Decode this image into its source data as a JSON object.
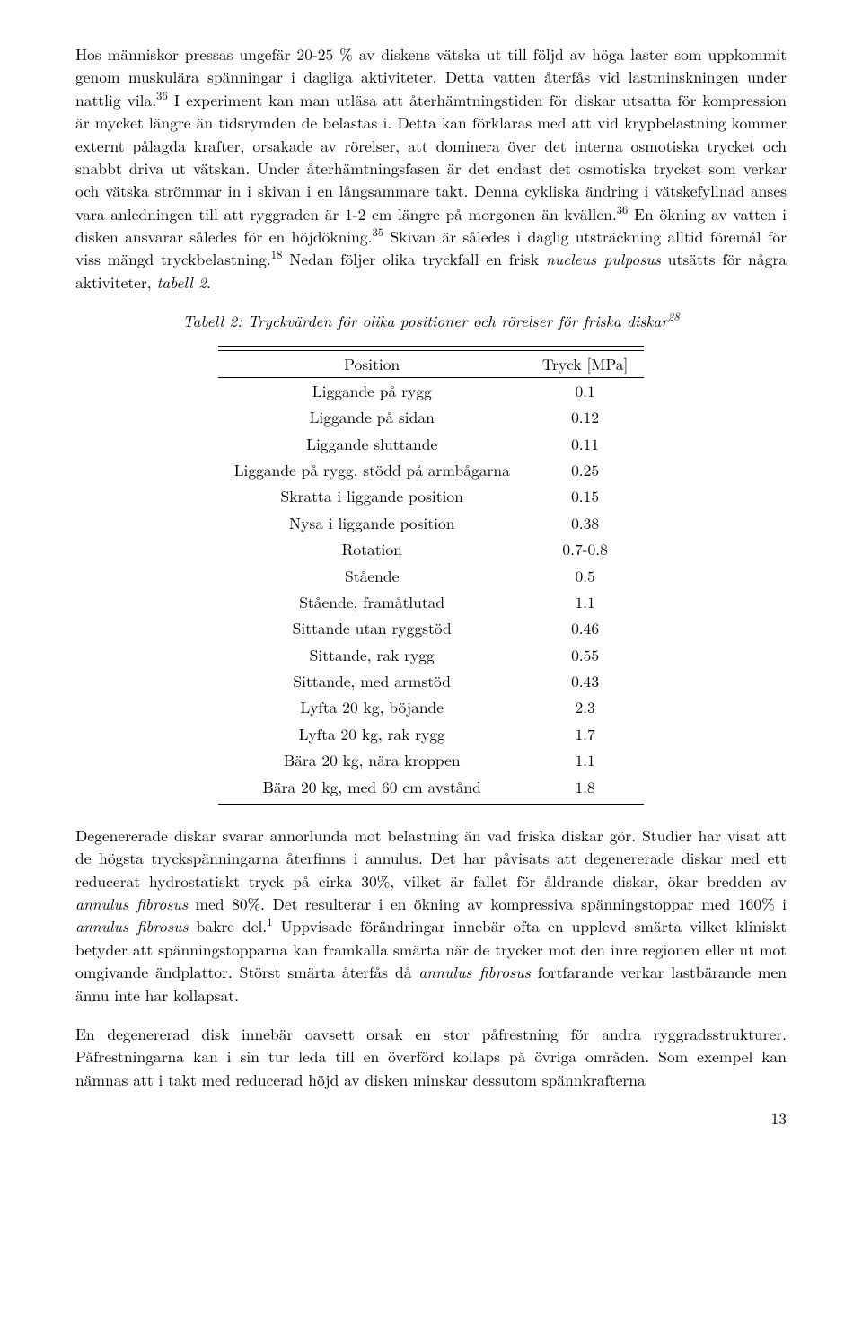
{
  "para1_html": "Hos människor pressas ungefär 20-25 % av diskens vätska ut till följd av höga laster som uppkommit genom muskulära spänningar i dagliga aktiviteter. Detta vatten återfås vid lastminskningen under nattlig vila.<sup>36</sup> I experiment kan man utläsa att återhämtningstiden för diskar utsatta för kompression är mycket längre än tidsrymden de belastas i. Detta kan förklaras med att vid krypbelastning kommer externt pålagda krafter, orsakade av rörelser, att dominera över det interna osmotiska trycket och snabbt driva ut vätskan. Under återhämtningsfasen är det endast det osmotiska trycket som verkar och vätska strömmar in i skivan i en långsammare takt. Denna cykliska ändring i vätskefyllnad anses vara anledningen till att ryggraden är 1-2 cm längre på morgonen än kvällen.<sup>36</sup> En ökning av vatten i disken ansvarar således för en höjdökning.<sup>35</sup> Skivan är således i daglig utsträckning alltid föremål för viss mängd tryckbelastning.<sup>18</sup> Nedan följer olika tryckfall en frisk <span class=\"italic\">nucleus pulposus</span> utsätts för några aktiviteter, <span class=\"italic\">tabell 2</span>.",
  "caption_html": "Tabell 2: Tryckvärden för olika positioner och rörelser för friska diskar<sup>28</sup>",
  "table": {
    "headers": [
      "Position",
      "Tryck [MPa]"
    ],
    "rows": [
      [
        "Liggande på rygg",
        "0.1"
      ],
      [
        "Liggande på sidan",
        "0.12"
      ],
      [
        "Liggande sluttande",
        "0.11"
      ],
      [
        "Liggande på rygg, stödd på armbågarna",
        "0.25"
      ],
      [
        "Skratta i liggande position",
        "0.15"
      ],
      [
        "Nysa i liggande position",
        "0.38"
      ],
      [
        "Rotation",
        "0.7-0.8"
      ],
      [
        "Stående",
        "0.5"
      ],
      [
        "Stående, framåtlutad",
        "1.1"
      ],
      [
        "Sittande utan ryggstöd",
        "0.46"
      ],
      [
        "Sittande, rak rygg",
        "0.55"
      ],
      [
        "Sittande, med armstöd",
        "0.43"
      ],
      [
        "Lyfta 20 kg, böjande",
        "2.3"
      ],
      [
        "Lyfta 20 kg, rak rygg",
        "1.7"
      ],
      [
        "Bära 20 kg, nära kroppen",
        "1.1"
      ],
      [
        "Bära 20 kg, med 60 cm avstånd",
        "1.8"
      ]
    ]
  },
  "para2_html": "Degenererade diskar svarar annorlunda mot belastning än vad friska diskar gör. Studier har visat att de högsta tryckspänningarna återfinns i annulus. Det har påvisats att degenererade diskar med ett reducerat hydrostatiskt tryck på cirka 30%, vilket är fallet för åldrande diskar, ökar bredden av <span class=\"italic\">annulus fibrosus</span> med 80%. Det resulterar i en ökning av kompressiva spänningstoppar med 160% i <span class=\"italic\">annulus fibrosus</span> bakre del.<sup>1</sup> Uppvisade förändringar innebär ofta en upplevd smärta vilket kliniskt betyder att spänningstopparna kan framkalla smärta när de trycker mot den inre regionen eller ut mot omgivande ändplattor. Störst smärta återfås då <span class=\"italic\">annulus fibrosus</span> fortfarande verkar lastbärande men ännu inte har kollapsat.",
  "para3_html": "En degenererad disk innebär oavsett orsak en stor påfrestning för andra ryggradsstrukturer. Påfrestningarna kan i sin tur leda till en överförd kollaps på övriga områden. Som exempel kan nämnas att i takt med reducerad höjd av disken minskar dessutom spännkrafterna",
  "page_number": "13"
}
